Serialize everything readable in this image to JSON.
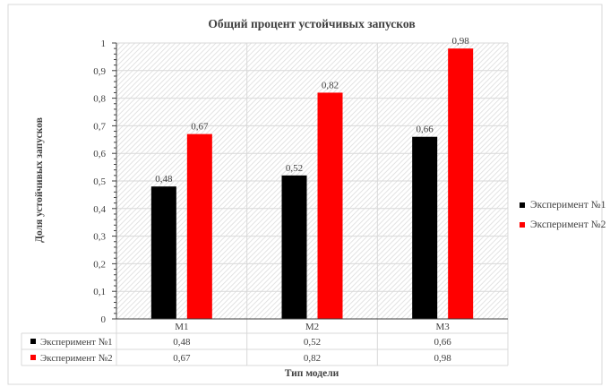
{
  "chart_data": {
    "type": "bar",
    "title": "Общий процент устойчивых запусков",
    "xlabel": "Тип модели",
    "ylabel": "Доля устойчивых запусков",
    "categories": [
      "M1",
      "M2",
      "M3"
    ],
    "ylim": [
      0,
      1
    ],
    "yticks": [
      "0",
      "0,1",
      "0,2",
      "0,3",
      "0,4",
      "0,5",
      "0,6",
      "0,7",
      "0,8",
      "0,9",
      "1"
    ],
    "series": [
      {
        "name": "Эксперимент №1",
        "color": "#000000",
        "values": [
          0.48,
          0.52,
          0.66
        ],
        "labels": [
          "0,48",
          "0,52",
          "0,66"
        ]
      },
      {
        "name": "Эксперимент №2",
        "color": "#ff0000",
        "values": [
          0.67,
          0.82,
          0.98
        ],
        "labels": [
          "0,67",
          "0,82",
          "0,98"
        ]
      }
    ],
    "grid": true,
    "legend_position": "right",
    "data_table": true
  }
}
